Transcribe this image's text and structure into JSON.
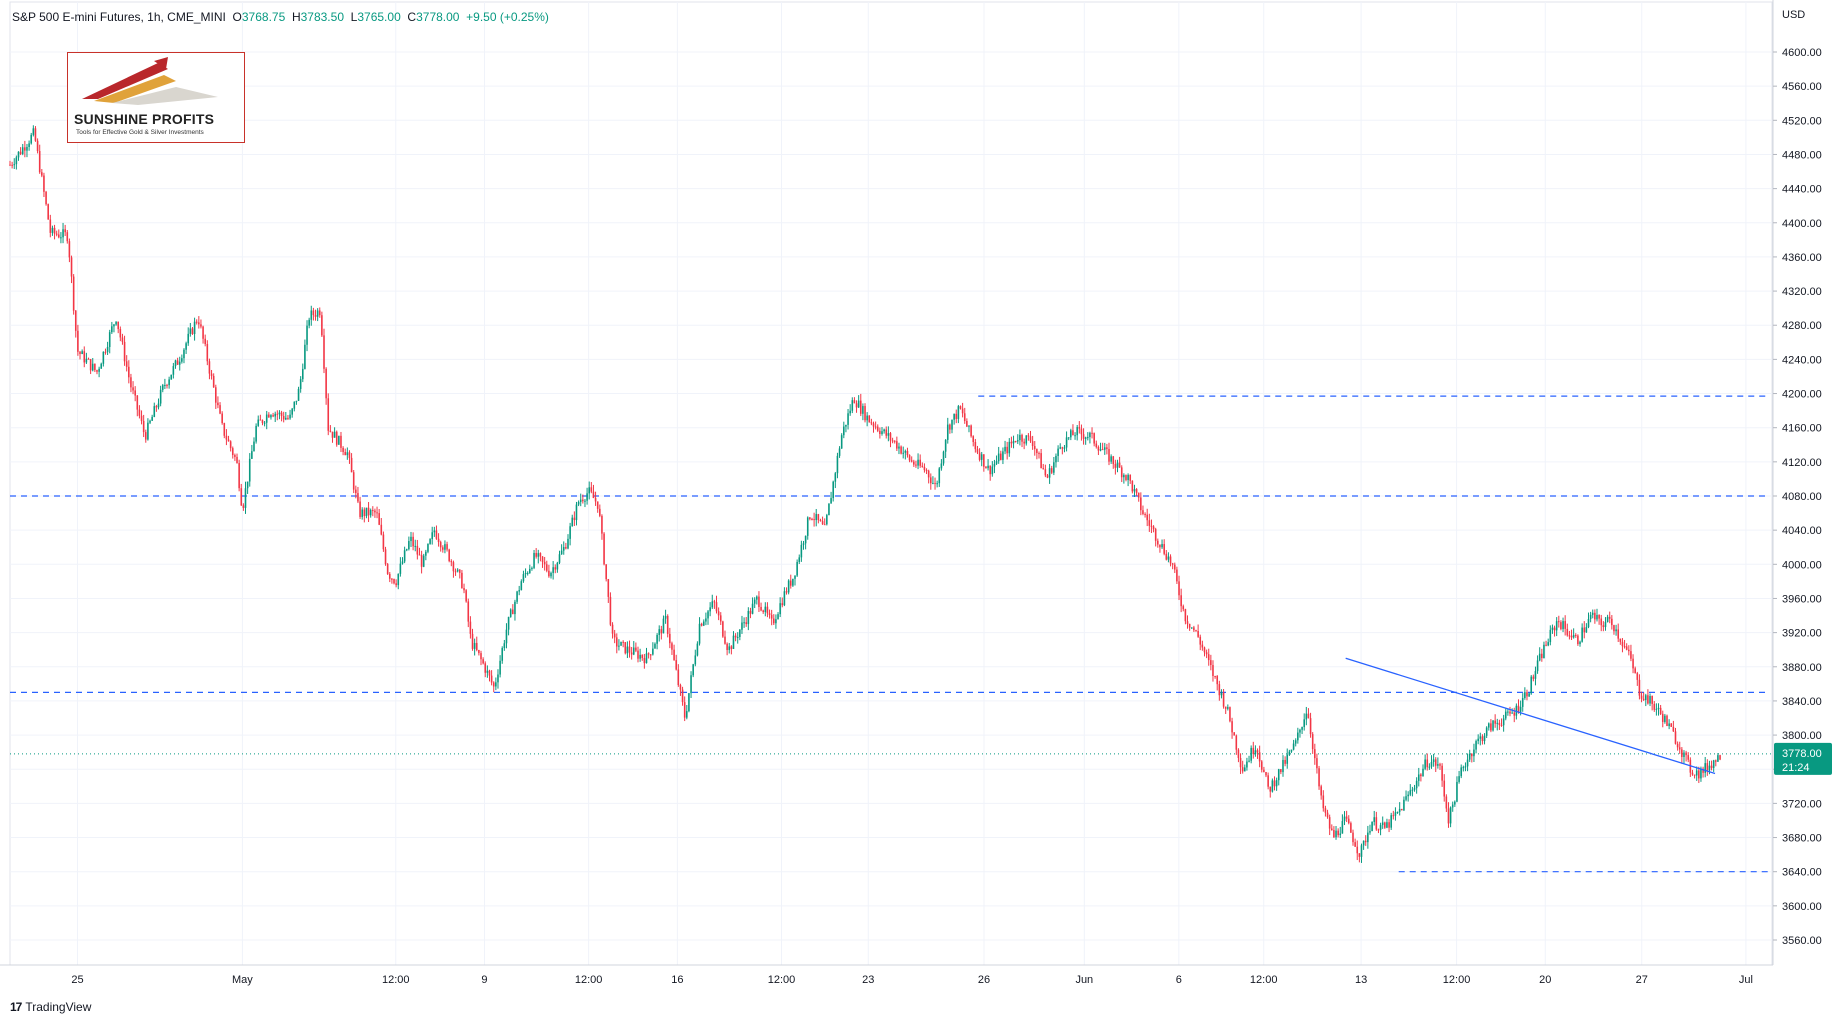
{
  "header": {
    "symbol": "S&P 500 E-mini Futures, 1h, CME_MINI",
    "open_label": "O",
    "open": "3768.75",
    "high_label": "H",
    "high": "3783.50",
    "low_label": "L",
    "low": "3765.00",
    "close_label": "C",
    "close": "3778.00",
    "change": "+9.50 (+0.25%)"
  },
  "logo": {
    "name": "SUNSHINE PROFITS",
    "tagline": "Tools for Effective Gold & Silver Investments"
  },
  "footer": {
    "brand": "TradingView",
    "brand_mark": "17"
  },
  "colors": {
    "up": "#089981",
    "down": "#f23645",
    "level": "#2962ff",
    "trend": "#2962ff",
    "grid": "#f0f3fa"
  },
  "chart_data": {
    "type": "candlestick",
    "currency": "USD",
    "price_badge": {
      "value": "3778.00",
      "countdown": "21:24"
    },
    "ylim": [
      3530,
      4650
    ],
    "y_ticks": [
      3560,
      3600,
      3640,
      3680,
      3720,
      3760,
      3800,
      3840,
      3880,
      3920,
      3960,
      4000,
      4040,
      4080,
      4120,
      4160,
      4200,
      4240,
      4280,
      4320,
      4360,
      4400,
      4440,
      4480,
      4520,
      4560,
      4600
    ],
    "x_ticks": [
      "25",
      "May",
      "12:00",
      "9",
      "12:00",
      "16",
      "12:00",
      "23",
      "26",
      "Jun",
      "6",
      "12:00",
      "13",
      "12:00",
      "20",
      "27",
      "Jul"
    ],
    "x_tick_index": [
      70,
      241,
      400,
      492,
      600,
      692,
      800,
      890,
      1010,
      1114,
      1212,
      1300,
      1401,
      1500,
      1592,
      1692,
      1800
    ],
    "x_range": [
      0,
      1825
    ],
    "horizontal_levels": [
      {
        "price": 4197,
        "x_start": 1004,
        "x_end": 1825
      },
      {
        "price": 4080,
        "x_start": 0,
        "x_end": 1825
      },
      {
        "price": 3850,
        "x_start": 0,
        "x_end": 1825
      },
      {
        "price": 3640,
        "x_start": 1440,
        "x_end": 1825
      }
    ],
    "current_price_line": 3778,
    "trendline": [
      {
        "x": 1385,
        "price": 3890
      },
      {
        "x": 1768,
        "price": 3755
      }
    ],
    "anchors": [
      [
        0,
        4468
      ],
      [
        25,
        4505
      ],
      [
        42,
        4388
      ],
      [
        60,
        4385
      ],
      [
        70,
        4250
      ],
      [
        90,
        4225
      ],
      [
        110,
        4290
      ],
      [
        125,
        4210
      ],
      [
        140,
        4150
      ],
      [
        160,
        4210
      ],
      [
        175,
        4240
      ],
      [
        195,
        4290
      ],
      [
        220,
        4160
      ],
      [
        235,
        4120
      ],
      [
        241,
        4065
      ],
      [
        255,
        4160
      ],
      [
        270,
        4180
      ],
      [
        290,
        4170
      ],
      [
        300,
        4205
      ],
      [
        310,
        4290
      ],
      [
        322,
        4298
      ],
      [
        330,
        4160
      ],
      [
        350,
        4130
      ],
      [
        362,
        4060
      ],
      [
        380,
        4060
      ],
      [
        392,
        3990
      ],
      [
        400,
        3980
      ],
      [
        415,
        4030
      ],
      [
        428,
        4000
      ],
      [
        440,
        4040
      ],
      [
        455,
        4010
      ],
      [
        470,
        3975
      ],
      [
        478,
        3910
      ],
      [
        492,
        3880
      ],
      [
        502,
        3855
      ],
      [
        515,
        3925
      ],
      [
        530,
        3980
      ],
      [
        545,
        4010
      ],
      [
        560,
        3990
      ],
      [
        575,
        4020
      ],
      [
        590,
        4075
      ],
      [
        600,
        4085
      ],
      [
        610,
        4070
      ],
      [
        625,
        3910
      ],
      [
        640,
        3900
      ],
      [
        660,
        3890
      ],
      [
        680,
        3935
      ],
      [
        700,
        3820
      ],
      [
        715,
        3930
      ],
      [
        730,
        3955
      ],
      [
        745,
        3900
      ],
      [
        760,
        3930
      ],
      [
        775,
        3960
      ],
      [
        790,
        3930
      ],
      [
        805,
        3970
      ],
      [
        812,
        3985
      ],
      [
        830,
        4060
      ],
      [
        845,
        4040
      ],
      [
        862,
        4150
      ],
      [
        875,
        4195
      ],
      [
        890,
        4170
      ],
      [
        900,
        4160
      ],
      [
        920,
        4140
      ],
      [
        935,
        4120
      ],
      [
        950,
        4110
      ],
      [
        960,
        4090
      ],
      [
        972,
        4160
      ],
      [
        985,
        4182
      ],
      [
        1000,
        4140
      ],
      [
        1015,
        4110
      ],
      [
        1030,
        4130
      ],
      [
        1045,
        4150
      ],
      [
        1060,
        4145
      ],
      [
        1075,
        4100
      ],
      [
        1090,
        4140
      ],
      [
        1105,
        4155
      ],
      [
        1120,
        4150
      ],
      [
        1140,
        4125
      ],
      [
        1160,
        4100
      ],
      [
        1175,
        4060
      ],
      [
        1190,
        4030
      ],
      [
        1205,
        4000
      ],
      [
        1218,
        3940
      ],
      [
        1232,
        3915
      ],
      [
        1248,
        3870
      ],
      [
        1262,
        3830
      ],
      [
        1278,
        3760
      ],
      [
        1292,
        3790
      ],
      [
        1305,
        3735
      ],
      [
        1318,
        3760
      ],
      [
        1333,
        3790
      ],
      [
        1345,
        3832
      ],
      [
        1360,
        3720
      ],
      [
        1372,
        3680
      ],
      [
        1385,
        3700
      ],
      [
        1400,
        3660
      ],
      [
        1412,
        3700
      ],
      [
        1425,
        3690
      ],
      [
        1440,
        3710
      ],
      [
        1455,
        3740
      ],
      [
        1470,
        3770
      ],
      [
        1482,
        3765
      ],
      [
        1492,
        3700
      ],
      [
        1505,
        3760
      ],
      [
        1520,
        3790
      ],
      [
        1535,
        3810
      ],
      [
        1550,
        3820
      ],
      [
        1562,
        3830
      ],
      [
        1575,
        3855
      ],
      [
        1590,
        3900
      ],
      [
        1605,
        3935
      ],
      [
        1612,
        3925
      ],
      [
        1625,
        3910
      ],
      [
        1640,
        3940
      ],
      [
        1650,
        3930
      ],
      [
        1660,
        3935
      ],
      [
        1680,
        3890
      ],
      [
        1690,
        3850
      ],
      [
        1700,
        3840
      ],
      [
        1715,
        3820
      ],
      [
        1730,
        3790
      ],
      [
        1742,
        3760
      ],
      [
        1752,
        3755
      ],
      [
        1762,
        3765
      ],
      [
        1775,
        3778
      ]
    ],
    "candle_step": 2.2
  }
}
